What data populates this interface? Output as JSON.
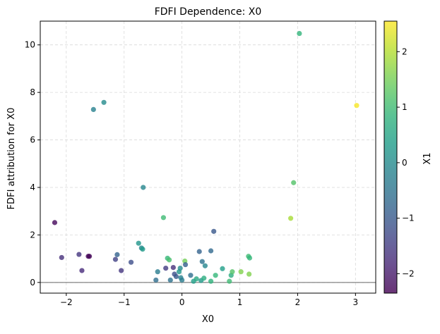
{
  "chart_data": {
    "type": "scatter",
    "title": "FDFI Dependence: X0",
    "xlabel": "X0",
    "ylabel": "FDFI attribution for X0",
    "xlim": [
      -2.45,
      3.35
    ],
    "ylim": [
      -0.45,
      11.0
    ],
    "xticks": [
      -2,
      -1,
      0,
      1,
      2,
      3
    ],
    "yticks": [
      0,
      2,
      4,
      6,
      8,
      10
    ],
    "grid": true,
    "hline": 0,
    "colorbar": {
      "label": "X1",
      "colormap": "viridis",
      "range": [
        -2.35,
        2.55
      ],
      "ticks": [
        -2,
        -1,
        0,
        1,
        2
      ]
    },
    "tick_labels": {
      "x": [
        "−2",
        "−1",
        "0",
        "1",
        "2",
        "3"
      ],
      "y": [
        "0",
        "2",
        "4",
        "6",
        "8",
        "10"
      ],
      "colorbar": [
        "−2",
        "−1",
        "0",
        "1",
        "2"
      ]
    },
    "points": [
      {
        "x": -2.2,
        "y": 2.52,
        "c": -2.25
      },
      {
        "x": -2.08,
        "y": 1.05,
        "c": -1.7
      },
      {
        "x": -1.78,
        "y": 1.18,
        "c": -1.6
      },
      {
        "x": -1.73,
        "y": 0.5,
        "c": -1.75
      },
      {
        "x": -1.62,
        "y": 1.1,
        "c": -2.3
      },
      {
        "x": -1.6,
        "y": 1.1,
        "c": -2.3
      },
      {
        "x": -1.53,
        "y": 7.28,
        "c": -0.2
      },
      {
        "x": -1.35,
        "y": 7.58,
        "c": 0.0
      },
      {
        "x": -1.15,
        "y": 0.97,
        "c": -1.4
      },
      {
        "x": -1.12,
        "y": 1.17,
        "c": -0.8
      },
      {
        "x": -1.05,
        "y": 0.5,
        "c": -1.6
      },
      {
        "x": -0.88,
        "y": 0.85,
        "c": -1.2
      },
      {
        "x": -0.75,
        "y": 1.65,
        "c": 0.2
      },
      {
        "x": -0.7,
        "y": 1.45,
        "c": -0.1
      },
      {
        "x": -0.68,
        "y": 1.4,
        "c": 0.3
      },
      {
        "x": -0.67,
        "y": 4.0,
        "c": -0.1
      },
      {
        "x": -0.45,
        "y": 0.1,
        "c": -0.6
      },
      {
        "x": -0.42,
        "y": 0.45,
        "c": -0.3
      },
      {
        "x": -0.32,
        "y": 2.73,
        "c": 1.0
      },
      {
        "x": -0.28,
        "y": 0.6,
        "c": -1.5
      },
      {
        "x": -0.25,
        "y": 1.02,
        "c": 0.9
      },
      {
        "x": -0.22,
        "y": 0.95,
        "c": 1.1
      },
      {
        "x": -0.2,
        "y": 0.1,
        "c": -0.5
      },
      {
        "x": -0.15,
        "y": 0.63,
        "c": -1.7
      },
      {
        "x": -0.13,
        "y": 0.35,
        "c": -1.2
      },
      {
        "x": -0.1,
        "y": 0.25,
        "c": -1.0
      },
      {
        "x": -0.05,
        "y": 0.45,
        "c": 0.2
      },
      {
        "x": -0.03,
        "y": 0.6,
        "c": 0.0
      },
      {
        "x": -0.02,
        "y": 0.2,
        "c": -0.2
      },
      {
        "x": 0.0,
        "y": 0.1,
        "c": -0.3
      },
      {
        "x": 0.05,
        "y": 0.9,
        "c": 1.5
      },
      {
        "x": 0.06,
        "y": 0.75,
        "c": -0.9
      },
      {
        "x": 0.15,
        "y": 0.3,
        "c": -0.6
      },
      {
        "x": 0.2,
        "y": 0.05,
        "c": 0.4
      },
      {
        "x": 0.25,
        "y": 0.15,
        "c": 0.6
      },
      {
        "x": 0.3,
        "y": 1.3,
        "c": -0.8
      },
      {
        "x": 0.33,
        "y": 0.08,
        "c": 0.3
      },
      {
        "x": 0.35,
        "y": 0.88,
        "c": -0.5
      },
      {
        "x": 0.38,
        "y": 0.18,
        "c": 0.7
      },
      {
        "x": 0.4,
        "y": 0.7,
        "c": -0.1
      },
      {
        "x": 0.5,
        "y": 1.33,
        "c": -0.7
      },
      {
        "x": 0.5,
        "y": 0.05,
        "c": 0.8
      },
      {
        "x": 0.55,
        "y": 2.15,
        "c": -1.0
      },
      {
        "x": 0.58,
        "y": 0.3,
        "c": 0.9
      },
      {
        "x": 0.7,
        "y": 0.58,
        "c": 0.4
      },
      {
        "x": 0.82,
        "y": 0.05,
        "c": 1.0
      },
      {
        "x": 0.85,
        "y": 0.3,
        "c": 0.7
      },
      {
        "x": 0.87,
        "y": 0.45,
        "c": 1.2
      },
      {
        "x": 1.02,
        "y": 0.45,
        "c": 1.6
      },
      {
        "x": 1.15,
        "y": 1.1,
        "c": 1.0
      },
      {
        "x": 1.16,
        "y": 0.35,
        "c": 1.6
      },
      {
        "x": 1.17,
        "y": 1.03,
        "c": 0.9
      },
      {
        "x": 1.88,
        "y": 2.7,
        "c": 1.9
      },
      {
        "x": 1.93,
        "y": 4.2,
        "c": 1.2
      },
      {
        "x": 2.03,
        "y": 10.48,
        "c": 0.85
      },
      {
        "x": 3.02,
        "y": 7.45,
        "c": 2.5
      }
    ]
  }
}
